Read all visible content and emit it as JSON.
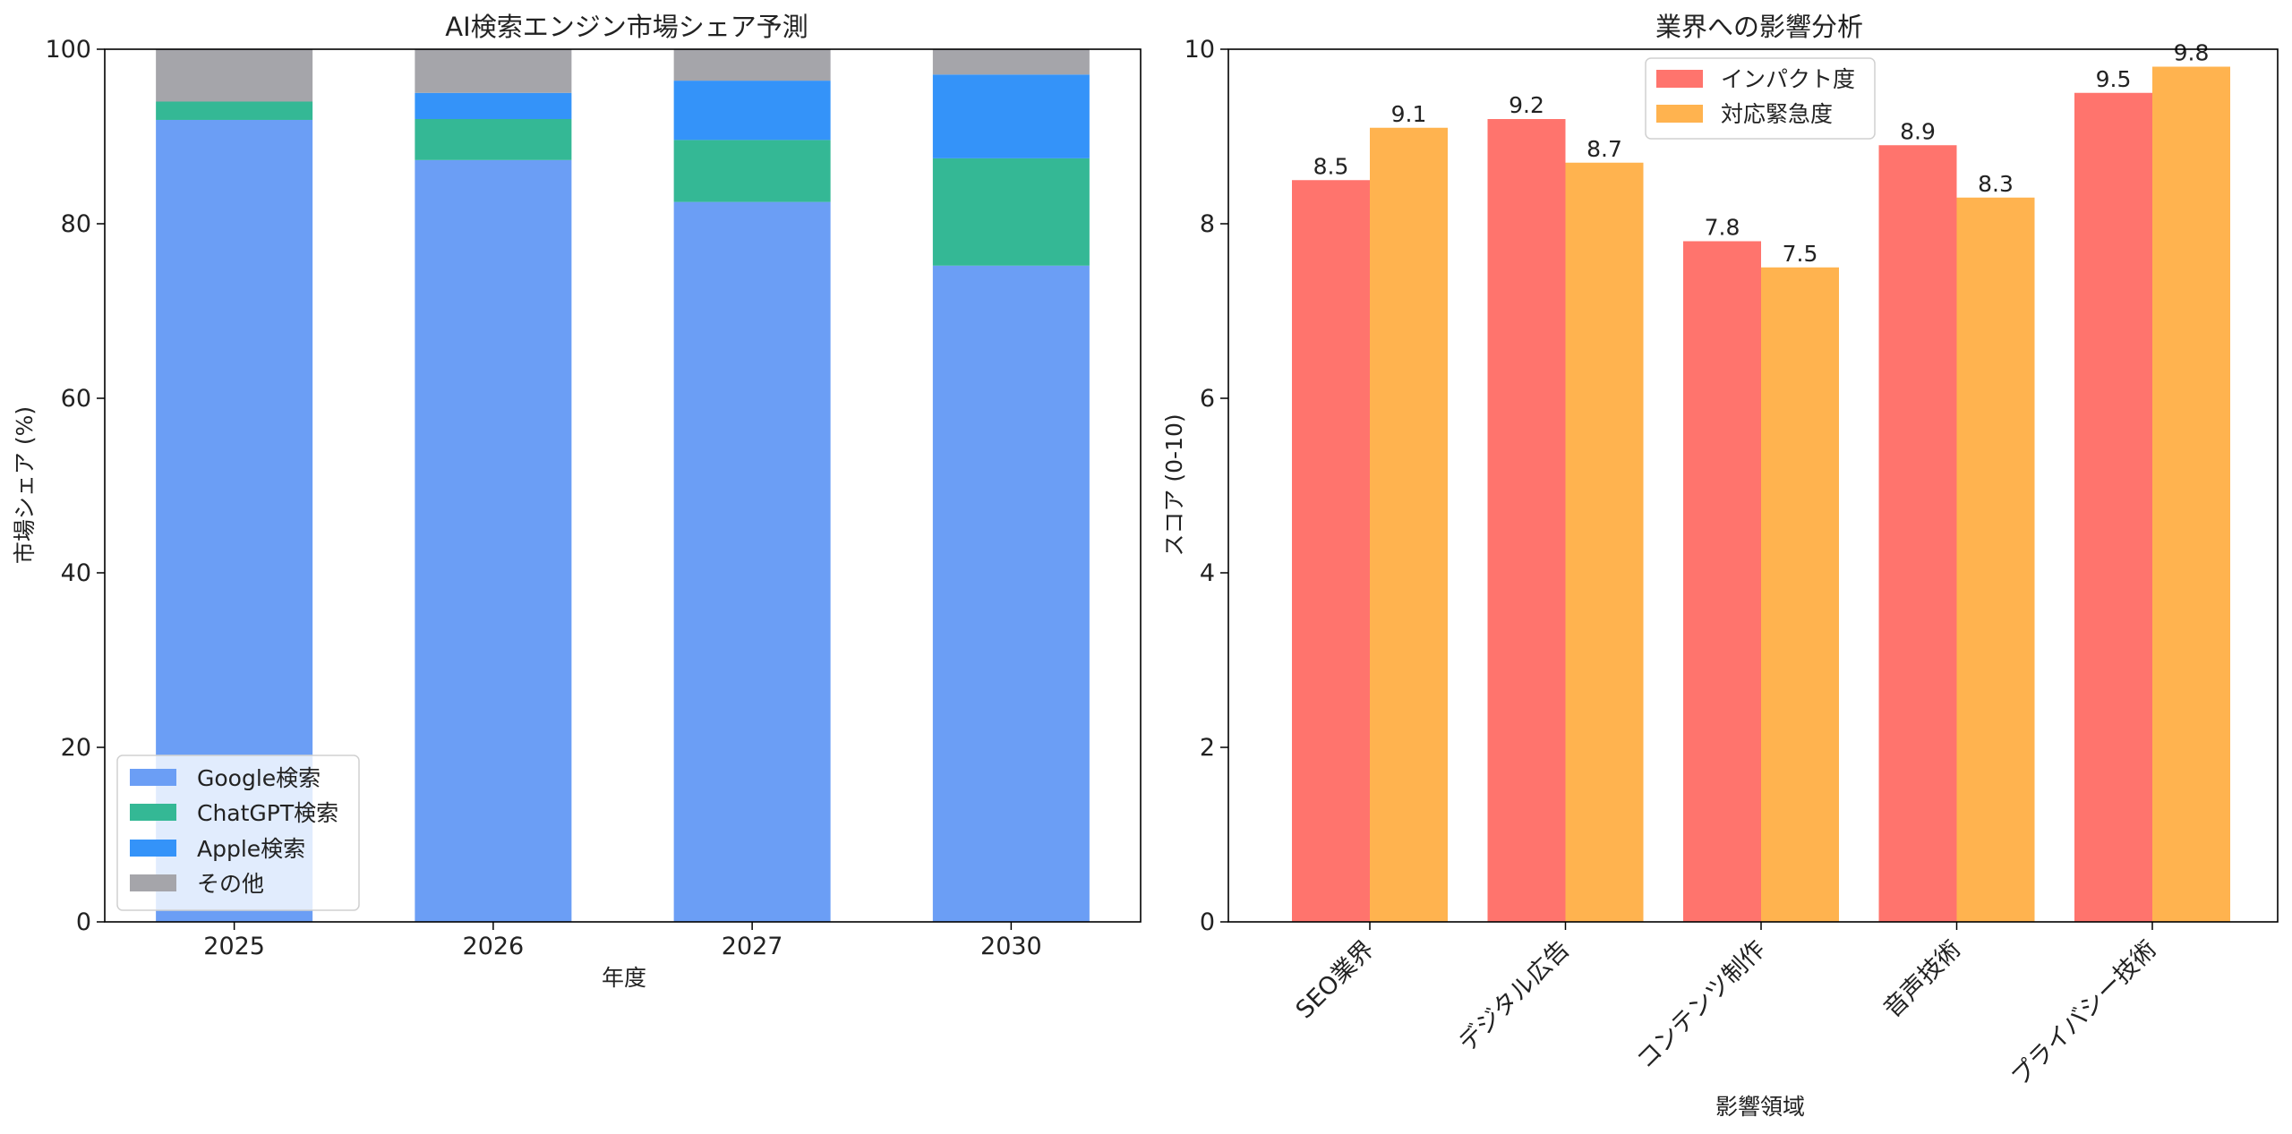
{
  "chart_data": [
    {
      "type": "bar",
      "stacked": true,
      "title": "AI検索エンジン市場シェア予測",
      "xlabel": "年度",
      "ylabel": "市場シェア (%)",
      "ylim": [
        0,
        100
      ],
      "yticks": [
        "0",
        "20",
        "40",
        "60",
        "80",
        "100"
      ],
      "categories": [
        "2025",
        "2026",
        "2027",
        "2030"
      ],
      "series": [
        {
          "name": "Google検索",
          "color": "#6b9ef5",
          "values": [
            91.9,
            87.3,
            82.5,
            75.2
          ]
        },
        {
          "name": "ChatGPT検索",
          "color": "#34b895",
          "values": [
            2.1,
            4.7,
            7.1,
            12.3
          ]
        },
        {
          "name": "Apple検索",
          "color": "#3493f9",
          "values": [
            0,
            3.0,
            6.8,
            9.6
          ]
        },
        {
          "name": "その他",
          "color": "#a5a5aa",
          "values": [
            6.0,
            5.0,
            3.6,
            2.9
          ]
        }
      ],
      "legend": "lower-left",
      "grid": false
    },
    {
      "type": "bar",
      "title": "業界への影響分析",
      "xlabel": "影響領域",
      "ylabel": "スコア (0-10)",
      "ylim": [
        0,
        10
      ],
      "yticks": [
        "0",
        "2",
        "4",
        "6",
        "8",
        "10"
      ],
      "categories": [
        "SEO業界",
        "デジタル広告",
        "コンテンツ制作",
        "音声技術",
        "プライバシー技術"
      ],
      "series": [
        {
          "name": "インパクト度",
          "color": "#ff746d",
          "values": [
            8.5,
            9.2,
            7.8,
            8.9,
            9.5
          ],
          "labels": [
            "8.5",
            "9.2",
            "7.8",
            "8.9",
            "9.5"
          ]
        },
        {
          "name": "対応緊急度",
          "color": "#ffb34f",
          "values": [
            9.1,
            8.7,
            7.5,
            8.3,
            9.8
          ],
          "labels": [
            "9.1",
            "8.7",
            "7.5",
            "8.3",
            "9.8"
          ]
        }
      ],
      "legend": "top-center",
      "grid": false
    }
  ]
}
